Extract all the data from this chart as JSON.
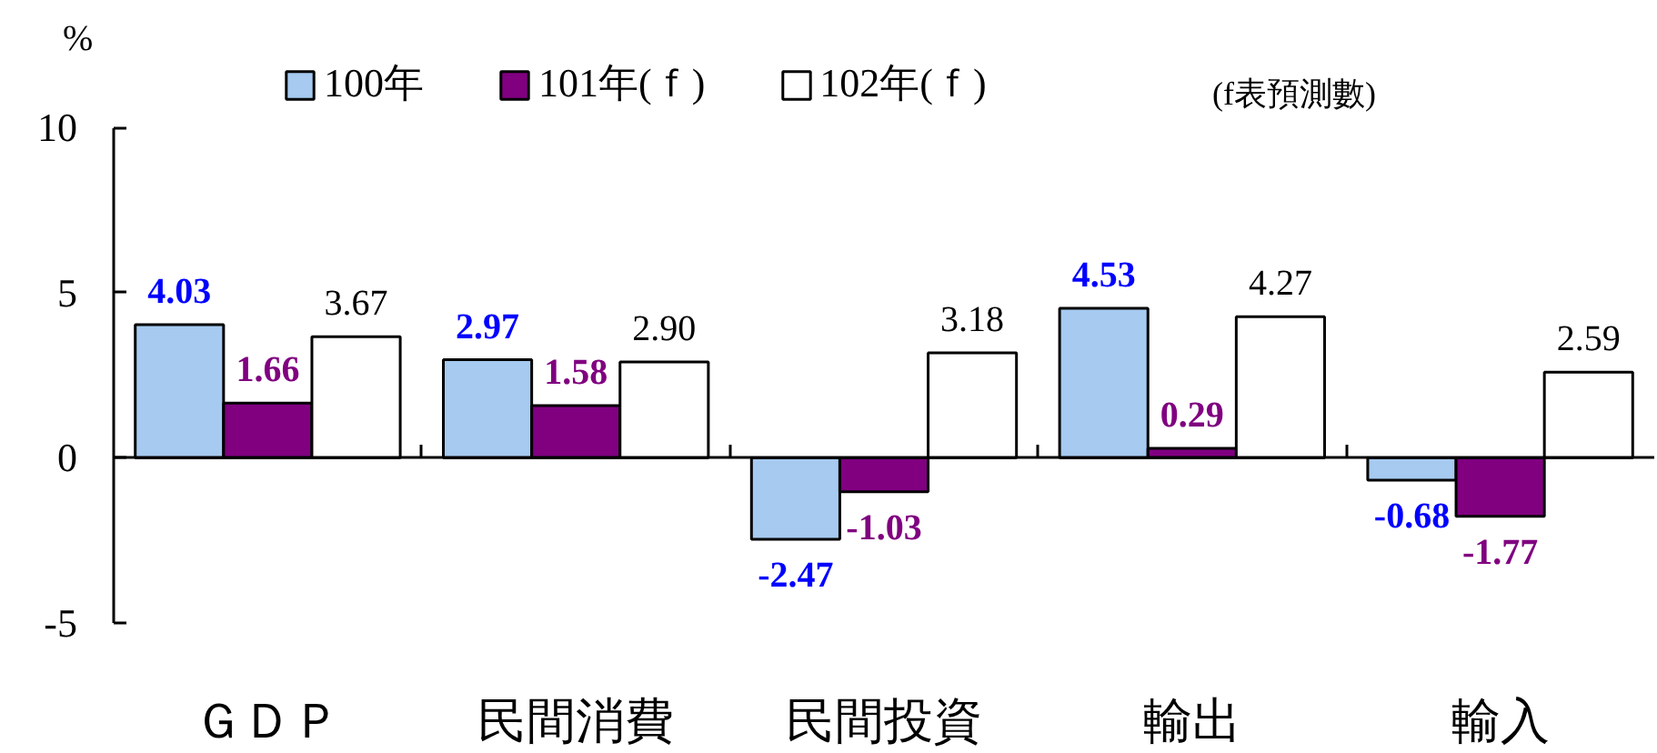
{
  "chart_data": {
    "type": "bar",
    "ylabel": "%",
    "categories": [
      "ＧＤＰ",
      "民間消費",
      "民間投資",
      "輸出",
      "輸入"
    ],
    "series": [
      {
        "name": "100年",
        "color": "#a6caf0",
        "values": [
          4.03,
          2.97,
          -2.47,
          4.53,
          -0.68
        ],
        "value_labels": [
          "4.03",
          "2.97",
          "-2.47",
          "4.53",
          "-0.68"
        ]
      },
      {
        "name": "101年(ｆ)",
        "color": "#800080",
        "values": [
          1.66,
          1.58,
          -1.03,
          0.29,
          -1.77
        ],
        "value_labels": [
          "1.66",
          "1.58",
          "-1.03",
          "0.29",
          "-1.77"
        ]
      },
      {
        "name": "102年(ｆ)",
        "color": "#ffffff",
        "values": [
          3.67,
          2.9,
          3.18,
          4.27,
          2.59
        ],
        "value_labels": [
          "3.67",
          "2.90",
          "3.18",
          "4.27",
          "2.59"
        ]
      }
    ],
    "ylim": [
      -5,
      10
    ],
    "yticks": [
      -5,
      0,
      5,
      10
    ],
    "legend": "top",
    "annotations": [
      "(f表預測數)"
    ]
  }
}
